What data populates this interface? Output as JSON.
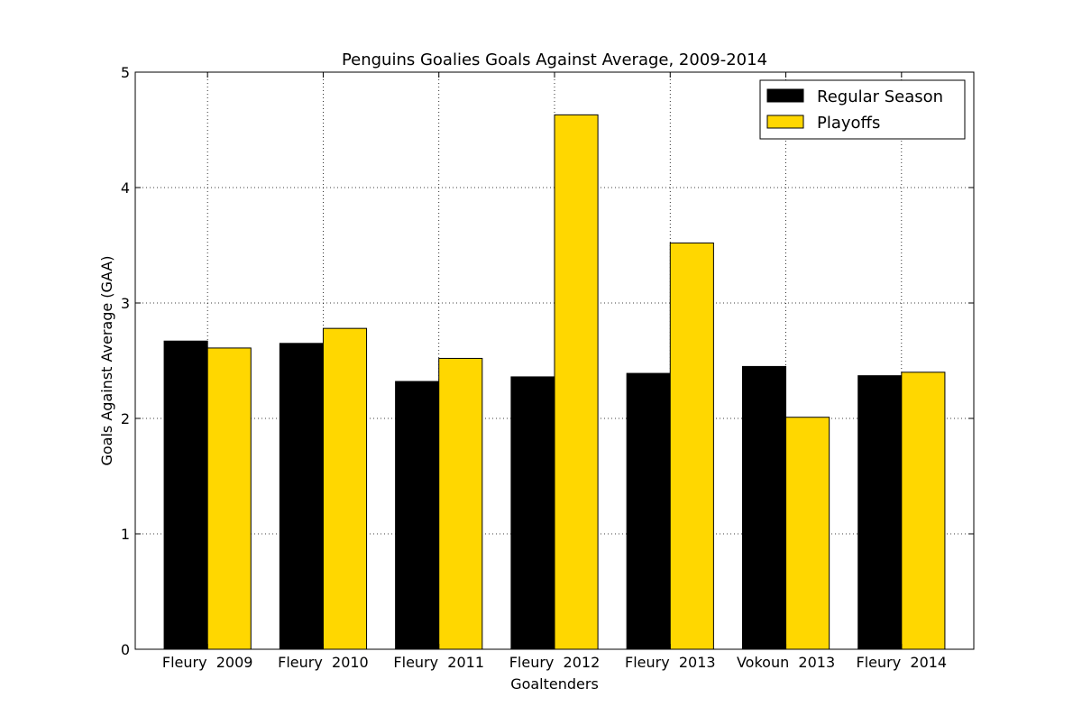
{
  "chart_data": {
    "type": "bar",
    "title": "Penguins Goalies Goals Against Average, 2009-2014",
    "xlabel": "Goaltenders",
    "ylabel": "Goals Against Average (GAA)",
    "ylim": [
      0,
      5
    ],
    "yticks": [
      "0",
      "1",
      "2",
      "3",
      "4",
      "5"
    ],
    "grid": true,
    "legend_position": "top-right",
    "categories": [
      "Fleury  2009",
      "Fleury  2010",
      "Fleury  2011",
      "Fleury  2012",
      "Fleury  2013",
      "Vokoun  2013",
      "Fleury  2014"
    ],
    "series": [
      {
        "name": "Regular Season",
        "color": "#000000",
        "values": [
          2.67,
          2.65,
          2.32,
          2.36,
          2.39,
          2.45,
          2.37
        ]
      },
      {
        "name": "Playoffs",
        "color": "#ffd700",
        "values": [
          2.61,
          2.78,
          2.52,
          4.63,
          3.52,
          2.01,
          2.4
        ]
      }
    ]
  }
}
